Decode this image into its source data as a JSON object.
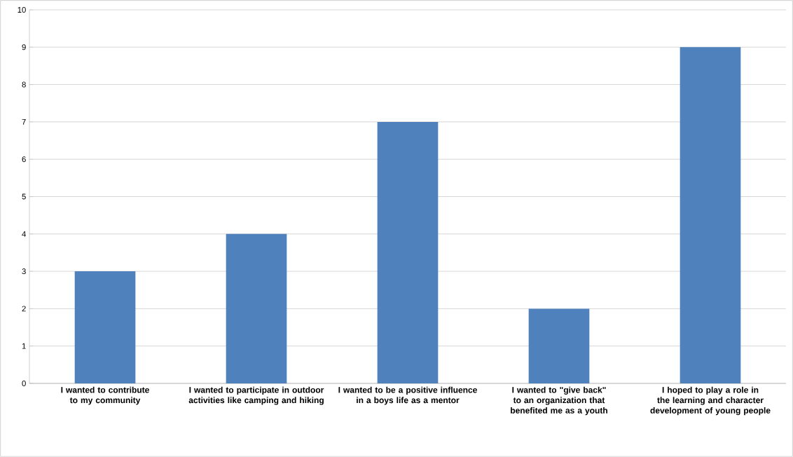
{
  "chart_data": {
    "type": "bar",
    "categories": [
      "I wanted to contribute to my community",
      "I wanted to participate in outdoor activities like camping and hiking",
      "I wanted to be a positive influence in a boys life as a mentor",
      "I wanted to \"give back\" to an organization that benefited me as a youth",
      "I hoped to play a role in the learning and character development of young people"
    ],
    "values": [
      3,
      4,
      7,
      2,
      9
    ],
    "color": "#4f81bd",
    "ylim": [
      0,
      10
    ],
    "yticks": [
      0,
      1,
      2,
      3,
      4,
      5,
      6,
      7,
      8,
      9,
      10
    ],
    "grid": "y"
  }
}
